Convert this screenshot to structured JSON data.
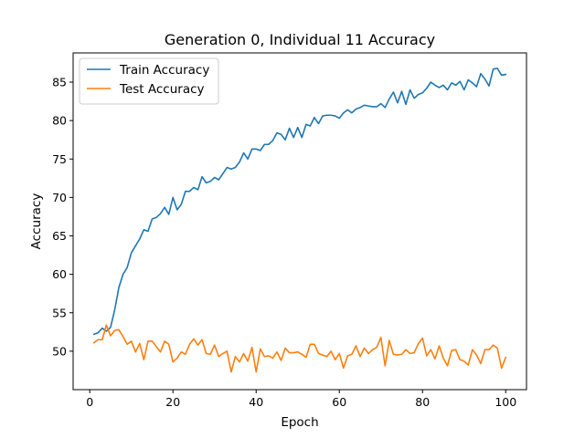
{
  "chart_data": {
    "type": "line",
    "title": "Generation 0, Individual 11 Accuracy",
    "xlabel": "Epoch",
    "ylabel": "Accuracy",
    "xlim": [
      -4,
      105
    ],
    "ylim": [
      45.0,
      88.8
    ],
    "xticks": [
      0,
      20,
      40,
      60,
      80,
      100
    ],
    "yticks": [
      50,
      55,
      60,
      65,
      70,
      75,
      80,
      85
    ],
    "legend_location": "upper-left",
    "grid": false,
    "series": [
      {
        "name": "Train Accuracy",
        "color": "#1f77b4",
        "x": [
          1,
          2,
          3,
          4,
          5,
          6,
          7,
          8,
          9,
          10,
          11,
          12,
          13,
          14,
          15,
          16,
          17,
          18,
          19,
          20,
          21,
          22,
          23,
          24,
          25,
          26,
          27,
          28,
          29,
          30,
          31,
          32,
          33,
          34,
          35,
          36,
          37,
          38,
          39,
          40,
          41,
          42,
          43,
          44,
          45,
          46,
          47,
          48,
          49,
          50,
          51,
          52,
          53,
          54,
          55,
          56,
          57,
          58,
          59,
          60,
          61,
          62,
          63,
          64,
          65,
          66,
          67,
          68,
          69,
          70,
          71,
          72,
          73,
          74,
          75,
          76,
          77,
          78,
          79,
          80,
          81,
          82,
          83,
          84,
          85,
          86,
          87,
          88,
          89,
          90,
          91,
          92,
          93,
          94,
          95,
          96,
          97,
          98,
          99,
          100
        ],
        "values": [
          52.2,
          52.4,
          53.0,
          52.6,
          53.1,
          55.4,
          58.3,
          60.0,
          60.9,
          62.8,
          63.7,
          64.6,
          65.8,
          65.6,
          67.2,
          67.4,
          67.9,
          68.7,
          67.8,
          70.0,
          68.4,
          69.1,
          70.8,
          70.8,
          71.3,
          71.0,
          72.7,
          71.9,
          72.1,
          72.6,
          72.3,
          73.1,
          73.9,
          73.7,
          73.9,
          74.6,
          75.8,
          75.0,
          76.3,
          76.3,
          76.1,
          76.9,
          76.9,
          77.4,
          78.4,
          78.2,
          77.5,
          79.0,
          77.8,
          79.1,
          77.8,
          79.5,
          79.3,
          80.4,
          79.6,
          80.6,
          80.7,
          80.7,
          80.6,
          80.3,
          81.0,
          81.4,
          81.0,
          81.5,
          81.7,
          82.0,
          81.9,
          81.8,
          81.8,
          82.2,
          81.7,
          82.8,
          83.7,
          82.3,
          83.8,
          82.1,
          84.0,
          82.9,
          83.4,
          83.6,
          84.2,
          85.0,
          84.6,
          84.3,
          84.6,
          84.0,
          84.9,
          84.6,
          85.1,
          84.0,
          85.3,
          84.9,
          84.4,
          86.1,
          85.4,
          84.5,
          86.7,
          86.8,
          85.9,
          86.0
        ]
      },
      {
        "name": "Test Accuracy",
        "color": "#ff7f0e",
        "x": [
          1,
          2,
          3,
          4,
          5,
          6,
          7,
          8,
          9,
          10,
          11,
          12,
          13,
          14,
          15,
          16,
          17,
          18,
          19,
          20,
          21,
          22,
          23,
          24,
          25,
          26,
          27,
          28,
          29,
          30,
          31,
          32,
          33,
          34,
          35,
          36,
          37,
          38,
          39,
          40,
          41,
          42,
          43,
          44,
          45,
          46,
          47,
          48,
          49,
          50,
          51,
          52,
          53,
          54,
          55,
          56,
          57,
          58,
          59,
          60,
          61,
          62,
          63,
          64,
          65,
          66,
          67,
          68,
          69,
          70,
          71,
          72,
          73,
          74,
          75,
          76,
          77,
          78,
          79,
          80,
          81,
          82,
          83,
          84,
          85,
          86,
          87,
          88,
          89,
          90,
          91,
          92,
          93,
          94,
          95,
          96,
          97,
          98,
          99,
          100
        ],
        "values": [
          51.1,
          51.5,
          51.5,
          53.4,
          52.0,
          52.7,
          52.8,
          51.9,
          50.9,
          51.3,
          49.9,
          51.0,
          48.9,
          51.3,
          51.3,
          50.6,
          49.9,
          51.3,
          50.9,
          48.6,
          49.1,
          49.9,
          49.6,
          50.9,
          51.6,
          50.8,
          51.5,
          49.7,
          49.6,
          50.8,
          49.3,
          49.7,
          50.0,
          47.3,
          49.3,
          48.6,
          49.7,
          48.7,
          50.5,
          47.3,
          50.3,
          49.3,
          49.4,
          49.1,
          49.9,
          48.8,
          50.4,
          49.8,
          49.8,
          49.9,
          49.6,
          49.2,
          50.9,
          50.9,
          49.7,
          49.5,
          49.3,
          50.0,
          48.9,
          49.7,
          47.8,
          49.4,
          49.6,
          50.7,
          49.3,
          50.4,
          49.7,
          50.2,
          50.5,
          51.8,
          48.1,
          51.4,
          49.6,
          49.5,
          49.6,
          50.2,
          49.7,
          49.8,
          51.0,
          51.7,
          49.4,
          50.2,
          49.0,
          50.7,
          49.1,
          48.1,
          50.1,
          50.2,
          48.9,
          48.7,
          48.2,
          50.2,
          49.5,
          48.4,
          50.2,
          50.2,
          50.8,
          50.4,
          47.8,
          49.2
        ]
      }
    ]
  }
}
